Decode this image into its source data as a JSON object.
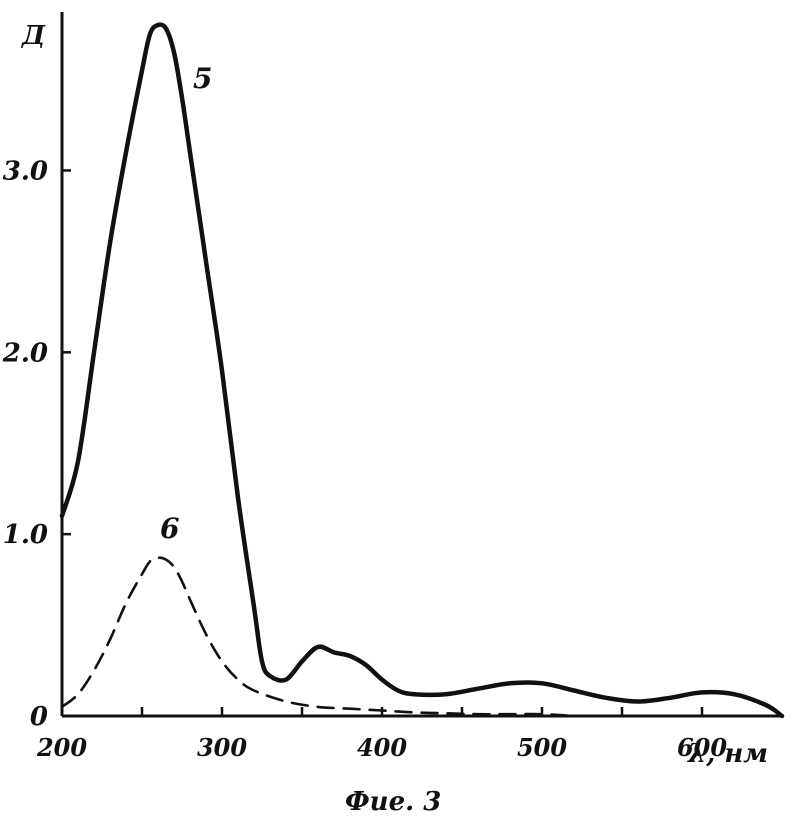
{
  "chart_data": {
    "type": "line",
    "ylabel": "Д",
    "xlabel": "λ, нм",
    "caption": "Фие. 3",
    "xlim": [
      200,
      650
    ],
    "ylim": [
      0,
      3.8
    ],
    "x_ticks": [
      200,
      250,
      300,
      350,
      400,
      450,
      500,
      550,
      600
    ],
    "x_tick_labels": [
      "200",
      "",
      "300",
      "",
      "400",
      "",
      "500",
      "",
      "600"
    ],
    "y_ticks": [
      0,
      1.0,
      2.0,
      3.0
    ],
    "y_tick_labels": [
      "0",
      "1.0",
      "2.0",
      "3.0"
    ],
    "grid": false,
    "colors": {
      "ink": "#111111",
      "background": "#ffffff"
    },
    "series": [
      {
        "name": "5",
        "style": "solid",
        "x": [
          200,
          210,
          220,
          230,
          240,
          250,
          255,
          260,
          265,
          270,
          275,
          280,
          290,
          300,
          310,
          320,
          325,
          330,
          340,
          350,
          360,
          370,
          380,
          390,
          400,
          410,
          420,
          440,
          460,
          480,
          500,
          520,
          540,
          560,
          580,
          600,
          620,
          640,
          650
        ],
        "y": [
          1.1,
          1.4,
          2.0,
          2.6,
          3.1,
          3.55,
          3.75,
          3.8,
          3.78,
          3.65,
          3.4,
          3.1,
          2.5,
          1.9,
          1.2,
          0.6,
          0.3,
          0.22,
          0.2,
          0.3,
          0.38,
          0.35,
          0.33,
          0.28,
          0.2,
          0.14,
          0.12,
          0.12,
          0.15,
          0.18,
          0.18,
          0.14,
          0.1,
          0.08,
          0.1,
          0.13,
          0.12,
          0.06,
          0.0
        ]
      },
      {
        "name": "6",
        "style": "dashed",
        "x": [
          200,
          210,
          220,
          230,
          240,
          250,
          255,
          260,
          265,
          270,
          275,
          280,
          290,
          300,
          310,
          320,
          340,
          360,
          380,
          400,
          420,
          440,
          460,
          480,
          500,
          520
        ],
        "y": [
          0.05,
          0.12,
          0.25,
          0.42,
          0.62,
          0.78,
          0.85,
          0.87,
          0.86,
          0.82,
          0.74,
          0.64,
          0.45,
          0.3,
          0.2,
          0.14,
          0.08,
          0.05,
          0.04,
          0.03,
          0.02,
          0.015,
          0.01,
          0.01,
          0.01,
          0.0
        ]
      }
    ]
  }
}
